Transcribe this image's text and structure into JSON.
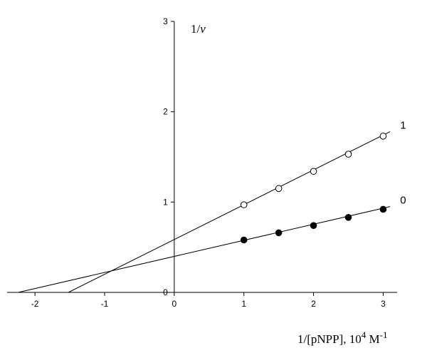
{
  "chart_data": {
    "type": "scatter",
    "title": "",
    "xlabel_main": "1/[pNPP], 10",
    "xlabel_exp": "4",
    "xlabel_unit": " M",
    "xlabel_unit_exp": "-1",
    "ylabel_main": "1/",
    "ylabel_var": "v",
    "xlim": [
      -2.4,
      3.2
    ],
    "ylim": [
      0,
      3
    ],
    "x_ticks": [
      -2,
      -1,
      0,
      1,
      2,
      3
    ],
    "y_ticks": [
      0,
      1,
      2,
      3
    ],
    "grid": false,
    "series": [
      {
        "name": "1",
        "marker": "open-circle",
        "x": [
          1.0,
          1.5,
          2.0,
          2.5,
          3.0
        ],
        "y": [
          0.97,
          1.15,
          1.34,
          1.53,
          1.73
        ],
        "fit": {
          "x": [
            -1.52,
            3.1
          ],
          "y": [
            0.0,
            1.78
          ]
        }
      },
      {
        "name": "0",
        "marker": "filled-circle",
        "x": [
          1.0,
          1.5,
          2.0,
          2.5,
          3.0
        ],
        "y": [
          0.58,
          0.66,
          0.74,
          0.83,
          0.92
        ],
        "fit": {
          "x": [
            -2.24,
            3.1
          ],
          "y": [
            0.0,
            0.95
          ]
        }
      }
    ]
  }
}
